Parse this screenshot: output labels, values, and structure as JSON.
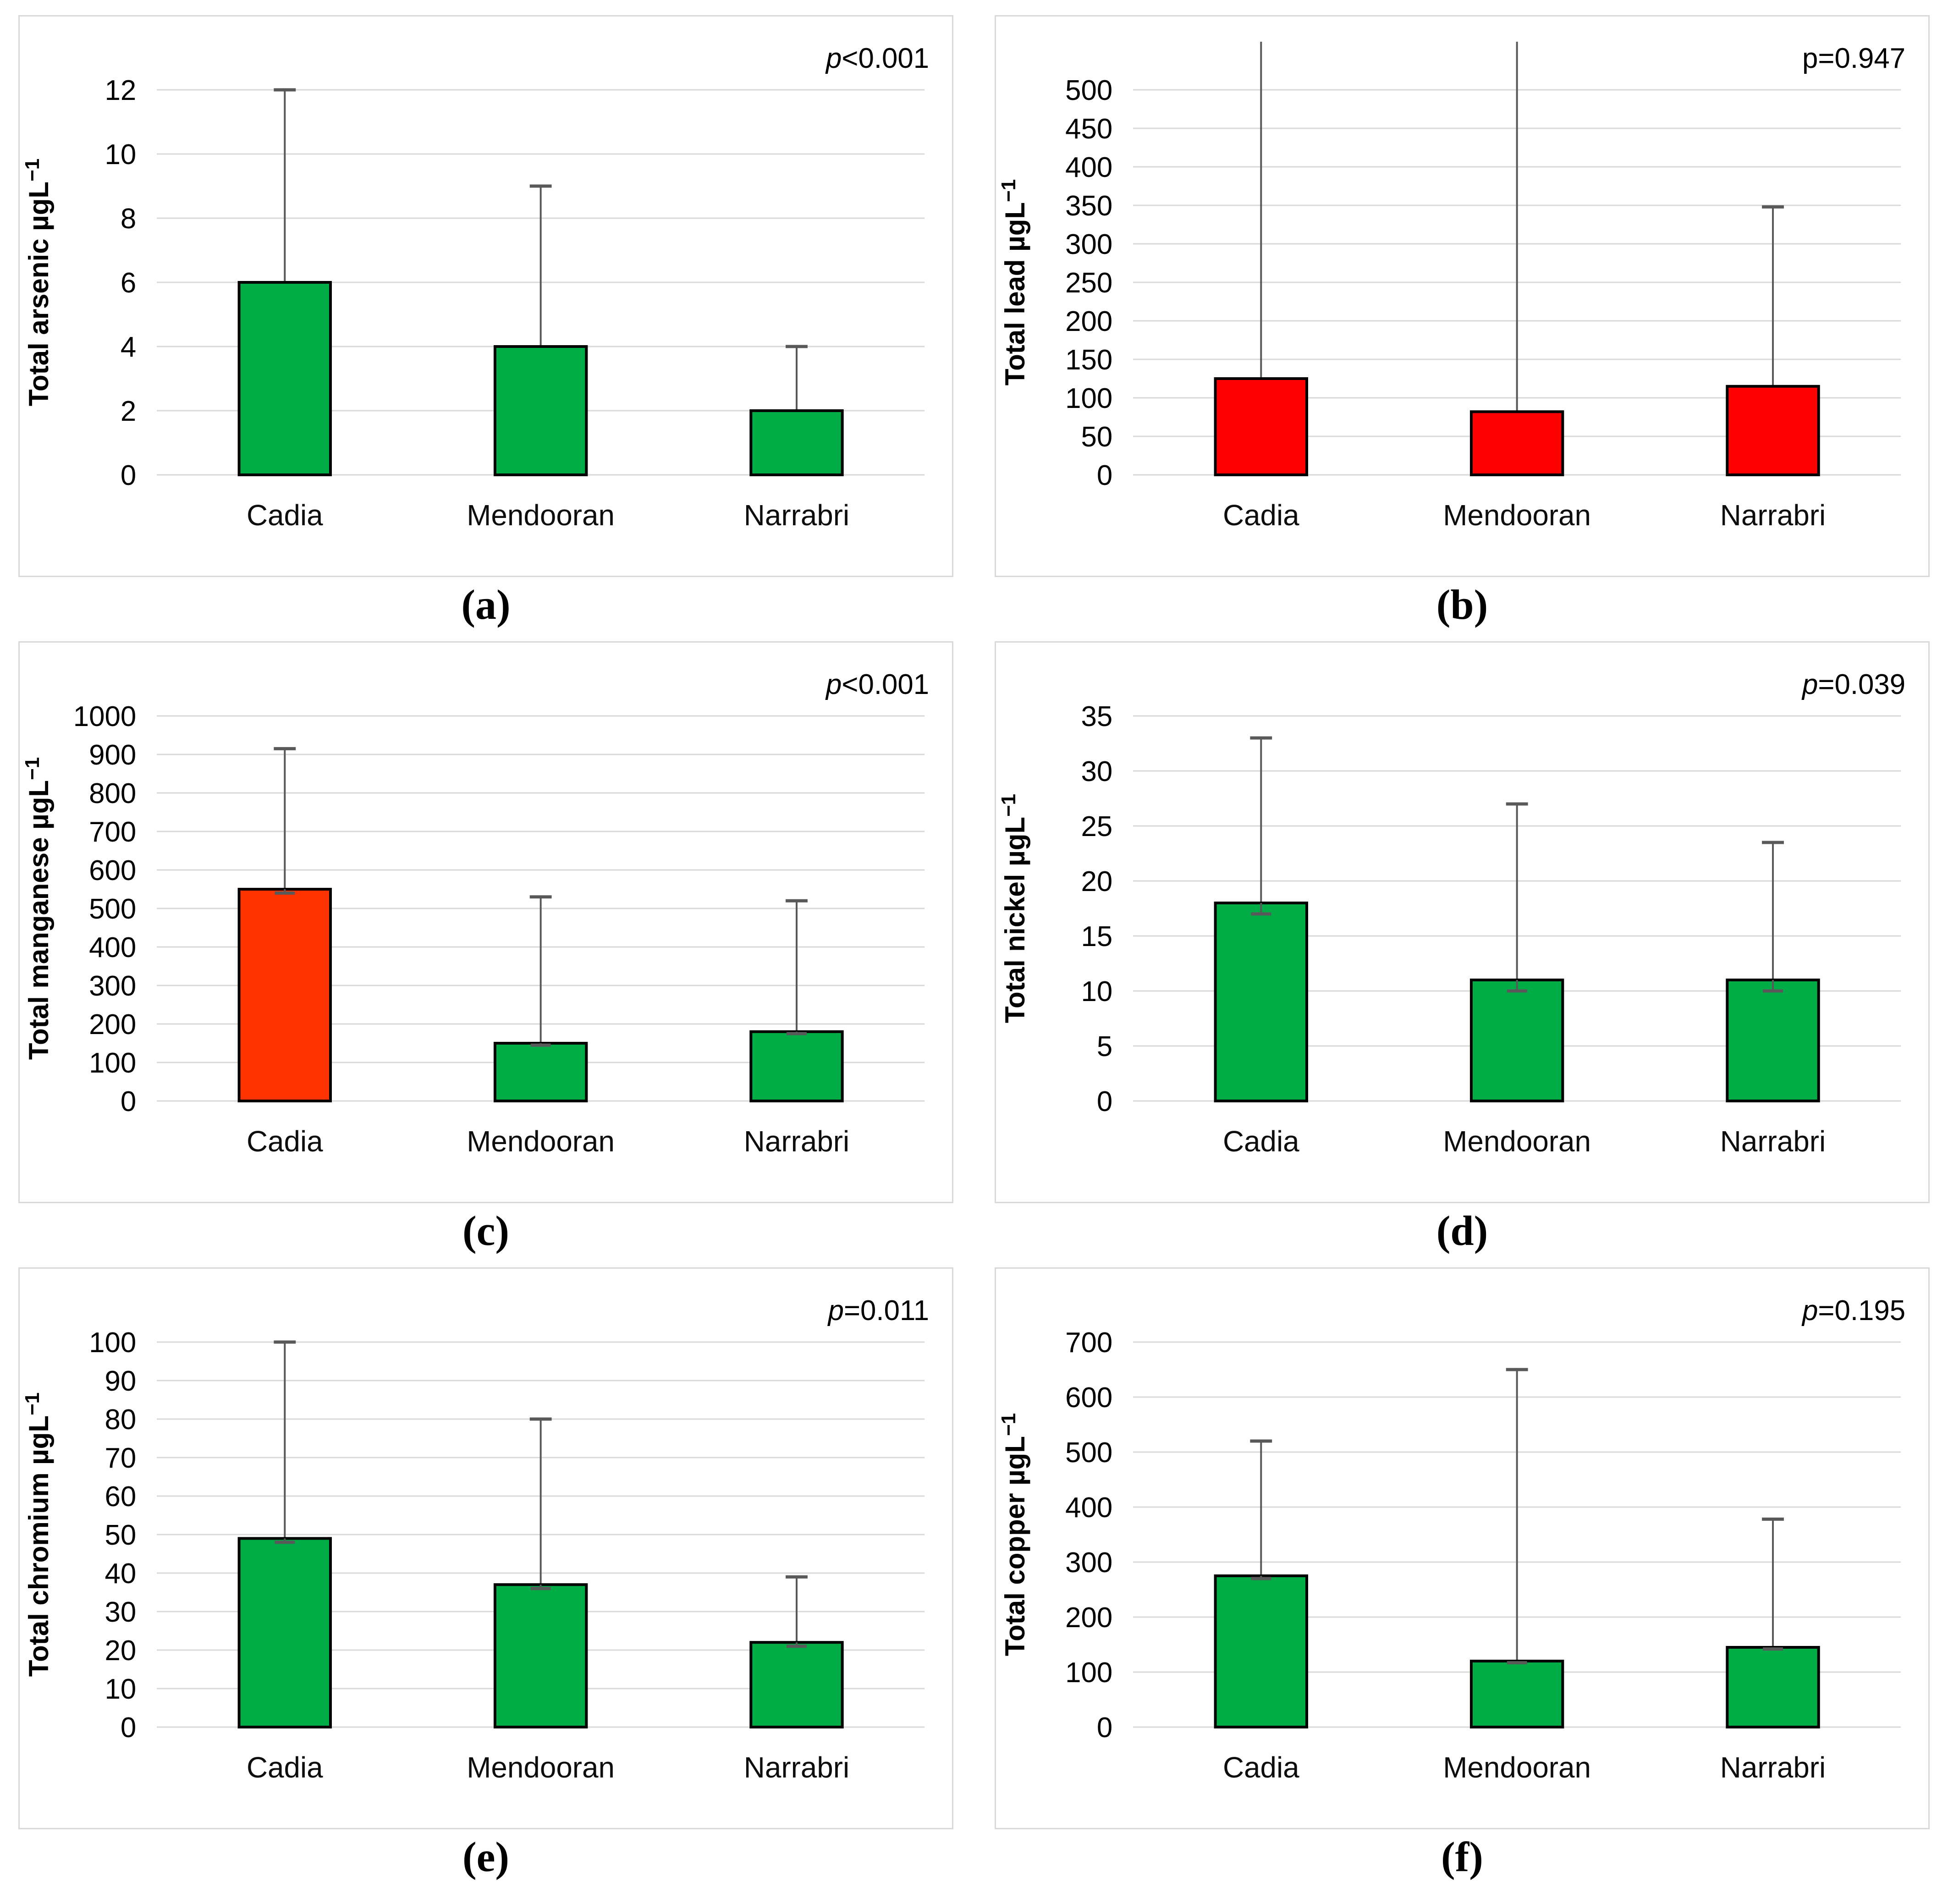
{
  "figure": {
    "sites": [
      "Cadia",
      "Mendooran",
      "Narrabri"
    ],
    "colors": {
      "green": "#00AC46",
      "red": "#FF0000",
      "orange_red": "#FF3300",
      "gridline": "#D9D9D9",
      "error_bar": "#595959",
      "bar_border": "#000000"
    }
  },
  "chart_data": [
    {
      "type": "bar",
      "caption": "(a)",
      "p_text": "p<0.001",
      "p_italic": true,
      "ylabel": "Total arsenic µgL⁻¹",
      "xlabel": "",
      "categories": [
        "Cadia",
        "Mendooran",
        "Narrabri"
      ],
      "values": [
        6,
        4,
        2
      ],
      "error_upper": [
        12,
        9,
        4
      ],
      "error_upper_clipped": [
        false,
        false,
        false
      ],
      "error_lower": null,
      "ylim": [
        0,
        12
      ],
      "y_step": 2,
      "bar_color": "#00AC46",
      "grid": true,
      "legend": "none"
    },
    {
      "type": "bar",
      "caption": "(b)",
      "p_text": "p=0.947",
      "p_italic": false,
      "ylabel": "Total lead µgL⁻¹",
      "xlabel": "",
      "categories": [
        "Cadia",
        "Mendooran",
        "Narrabri"
      ],
      "values": [
        125,
        82,
        115
      ],
      "error_upper": [
        500,
        500,
        348
      ],
      "error_upper_clipped": [
        true,
        true,
        false
      ],
      "error_lower": null,
      "ylim": [
        0,
        500
      ],
      "y_step": 50,
      "bar_color": "#FF0000",
      "grid": true,
      "legend": "none"
    },
    {
      "type": "bar",
      "caption": "(c)",
      "p_text": "p<0.001",
      "p_italic": true,
      "ylabel": "Total manganese µgL⁻¹",
      "xlabel": "",
      "categories": [
        "Cadia",
        "Mendooran",
        "Narrabri"
      ],
      "values": [
        550,
        150,
        180
      ],
      "error_upper": [
        915,
        530,
        520
      ],
      "error_upper_clipped": [
        false,
        false,
        false
      ],
      "error_lower": [
        540,
        145,
        175
      ],
      "ylim": [
        0,
        1000
      ],
      "y_step": 100,
      "bar_color": "#FF3300",
      "bar_colors": [
        "#FF3300",
        "#00AC46",
        "#00AC46"
      ],
      "grid": true,
      "legend": "none"
    },
    {
      "type": "bar",
      "caption": "(d)",
      "p_text": "p=0.039",
      "p_italic": true,
      "ylabel": "Total nickel µgL⁻¹",
      "xlabel": "",
      "categories": [
        "Cadia",
        "Mendooran",
        "Narrabri"
      ],
      "values": [
        18,
        11,
        11
      ],
      "error_upper": [
        33,
        27,
        23.5
      ],
      "error_upper_clipped": [
        false,
        false,
        false
      ],
      "error_lower": [
        17,
        10,
        10
      ],
      "ylim": [
        0,
        35
      ],
      "y_step": 5,
      "bar_color": "#00AC46",
      "grid": true,
      "legend": "none"
    },
    {
      "type": "bar",
      "caption": "(e)",
      "p_text": "p=0.011",
      "p_italic": true,
      "ylabel": "Total chromium µgL⁻¹",
      "xlabel": "",
      "categories": [
        "Cadia",
        "Mendooran",
        "Narrabri"
      ],
      "values": [
        49,
        37,
        22
      ],
      "error_upper": [
        100,
        80,
        39
      ],
      "error_upper_clipped": [
        false,
        false,
        false
      ],
      "error_lower": [
        48,
        36,
        21
      ],
      "ylim": [
        0,
        100
      ],
      "y_step": 10,
      "bar_color": "#00AC46",
      "grid": true,
      "legend": "none"
    },
    {
      "type": "bar",
      "caption": "(f)",
      "p_text": "p=0.195",
      "p_italic": true,
      "ylabel": "Total copper µgL⁻¹",
      "xlabel": "",
      "categories": [
        "Cadia",
        "Mendooran",
        "Narrabri"
      ],
      "values": [
        275,
        120,
        145
      ],
      "error_upper": [
        520,
        650,
        378
      ],
      "error_upper_clipped": [
        false,
        false,
        false
      ],
      "error_lower": [
        270,
        117,
        142
      ],
      "ylim": [
        0,
        700
      ],
      "y_step": 100,
      "bar_color": "#00AC46",
      "grid": true,
      "legend": "none"
    }
  ]
}
